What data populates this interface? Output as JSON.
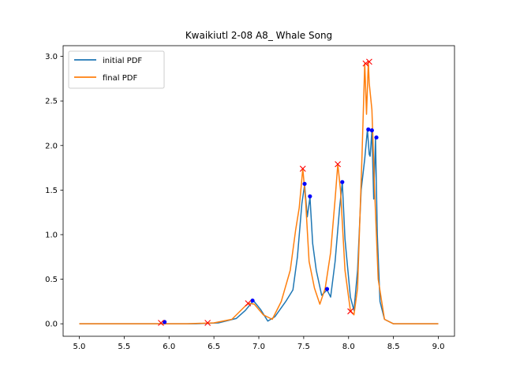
{
  "chart_data": {
    "type": "line",
    "title": "Kwaikiutl 2-08 A8_ Whale Song",
    "xlabel": "",
    "ylabel": "",
    "xlim": [
      4.82,
      9.18
    ],
    "ylim": [
      -0.14,
      3.12
    ],
    "x_ticks": [
      5.0,
      5.5,
      6.0,
      6.5,
      7.0,
      7.5,
      8.0,
      8.5,
      9.0
    ],
    "x_tick_labels": [
      "5.0",
      "5.5",
      "6.0",
      "6.5",
      "7.0",
      "7.5",
      "8.0",
      "8.5",
      "9.0"
    ],
    "y_ticks": [
      0.0,
      0.5,
      1.0,
      1.5,
      2.0,
      2.5,
      3.0
    ],
    "y_tick_labels": [
      "0.0",
      "0.5",
      "1.0",
      "1.5",
      "2.0",
      "2.5",
      "3.0"
    ],
    "grid": false,
    "legend_position": "top-left",
    "series": [
      {
        "name": "initial PDF",
        "color": "#1f77b4",
        "x": [
          5.0,
          6.3,
          6.55,
          6.75,
          6.85,
          6.94,
          7.02,
          7.1,
          7.18,
          7.3,
          7.38,
          7.43,
          7.48,
          7.51,
          7.54,
          7.57,
          7.6,
          7.64,
          7.7,
          7.76,
          7.8,
          7.85,
          7.9,
          7.93,
          7.96,
          8.02,
          8.06,
          8.1,
          8.14,
          8.18,
          8.21,
          8.23,
          8.24,
          8.26,
          8.28,
          8.3,
          8.32,
          8.35,
          8.4,
          8.5,
          8.6,
          9.0
        ],
        "y": [
          0.0,
          0.0,
          0.01,
          0.06,
          0.15,
          0.26,
          0.16,
          0.03,
          0.08,
          0.25,
          0.38,
          0.75,
          1.35,
          1.56,
          1.2,
          1.42,
          0.9,
          0.6,
          0.32,
          0.38,
          0.3,
          0.7,
          1.3,
          1.59,
          0.95,
          0.3,
          0.15,
          0.6,
          1.5,
          1.85,
          2.18,
          1.9,
          1.88,
          2.17,
          1.4,
          2.08,
          1.0,
          0.25,
          0.05,
          0.0,
          0.0,
          0.0
        ]
      },
      {
        "name": "final PDF",
        "color": "#ff7f0e",
        "x": [
          5.0,
          6.2,
          6.5,
          6.7,
          6.85,
          6.89,
          6.95,
          7.05,
          7.15,
          7.25,
          7.35,
          7.41,
          7.45,
          7.49,
          7.52,
          7.56,
          7.62,
          7.68,
          7.74,
          7.8,
          7.85,
          7.88,
          7.91,
          7.96,
          8.02,
          8.06,
          8.1,
          8.15,
          8.18,
          8.2,
          8.22,
          8.23,
          8.26,
          8.29,
          8.33,
          8.4,
          8.5,
          8.6,
          9.0
        ],
        "y": [
          0.0,
          0.0,
          0.01,
          0.05,
          0.2,
          0.23,
          0.22,
          0.1,
          0.05,
          0.25,
          0.6,
          1.05,
          1.3,
          1.74,
          1.4,
          0.7,
          0.4,
          0.22,
          0.4,
          0.8,
          1.4,
          1.79,
          1.5,
          0.6,
          0.15,
          0.1,
          0.4,
          1.9,
          2.92,
          2.35,
          2.94,
          2.7,
          2.4,
          1.5,
          0.5,
          0.05,
          0.0,
          0.0,
          0.0
        ]
      }
    ],
    "markers": [
      {
        "name": "initial peaks",
        "color": "#0000ff",
        "shape": "dot",
        "x": [
          5.95,
          6.93,
          7.51,
          7.57,
          7.76,
          7.93,
          8.22,
          8.26,
          8.31
        ],
        "y": [
          0.02,
          0.26,
          1.57,
          1.43,
          0.39,
          1.59,
          2.18,
          2.17,
          2.09
        ]
      },
      {
        "name": "final peaks",
        "color": "#ff0000",
        "shape": "x",
        "x": [
          5.91,
          6.43,
          6.88,
          7.49,
          7.88,
          8.02,
          8.19,
          8.23
        ],
        "y": [
          0.01,
          0.01,
          0.23,
          1.74,
          1.79,
          0.14,
          2.92,
          2.94
        ]
      }
    ]
  }
}
